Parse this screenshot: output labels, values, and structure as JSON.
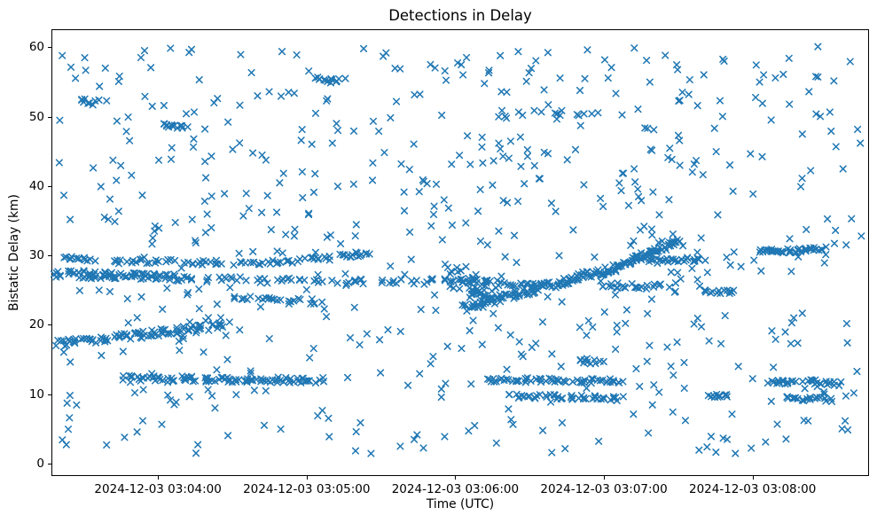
{
  "chart_data": {
    "type": "scatter",
    "title": "Detections in Delay",
    "xlabel": "Time (UTC)",
    "ylabel": "Bistatic Delay (km)",
    "marker": "x",
    "marker_color": "#1f77b4",
    "background_color": "#ffffff",
    "axes": {
      "time_origin": "2024-12-03 03:00:00",
      "x_min_s": 197,
      "x_max_s": 527,
      "y_min": -1.8,
      "y_max": 62.6,
      "x_tick_values_s": [
        240,
        300,
        360,
        420,
        480
      ],
      "x_tick_labels": [
        "2024-12-03 03:04:00",
        "2024-12-03 03:05:00",
        "2024-12-03 03:06:00",
        "2024-12-03 03:07:00",
        "2024-12-03 03:08:00"
      ],
      "y_tick_values": [
        0,
        10,
        20,
        30,
        40,
        50,
        60
      ],
      "y_tick_labels": [
        "0",
        "10",
        "20",
        "30",
        "40",
        "50",
        "60"
      ],
      "grid": false,
      "legend": false
    },
    "tracks": [
      {
        "t0": 199,
        "y0": 27.4,
        "t1": 250,
        "y1": 26.7,
        "n": 80,
        "jt": 2.0,
        "jy": 0.55
      },
      {
        "t0": 250,
        "y0": 26.6,
        "t1": 352,
        "y1": 26.2,
        "n": 55,
        "jt": 3.0,
        "jy": 0.4
      },
      {
        "t0": 355,
        "y0": 26.5,
        "t1": 393,
        "y1": 25.7,
        "n": 32,
        "jt": 2.0,
        "jy": 0.45
      },
      {
        "t0": 203,
        "y0": 29.6,
        "t1": 214,
        "y1": 29.4,
        "n": 12,
        "jt": 1.0,
        "jy": 0.3
      },
      {
        "t0": 221,
        "y0": 29.1,
        "t1": 246,
        "y1": 29.2,
        "n": 20,
        "jt": 1.5,
        "jy": 0.3
      },
      {
        "t0": 251,
        "y0": 28.9,
        "t1": 266,
        "y1": 29.0,
        "n": 14,
        "jt": 1.0,
        "jy": 0.3
      },
      {
        "t0": 272,
        "y0": 28.8,
        "t1": 297,
        "y1": 29.2,
        "n": 22,
        "jt": 1.5,
        "jy": 0.3
      },
      {
        "t0": 300,
        "y0": 29.4,
        "t1": 310,
        "y1": 29.6,
        "n": 10,
        "jt": 1.0,
        "jy": 0.3
      },
      {
        "t0": 314,
        "y0": 29.9,
        "t1": 325,
        "y1": 30.2,
        "n": 14,
        "jt": 1.0,
        "jy": 0.3
      },
      {
        "t0": 199,
        "y0": 17.2,
        "t1": 268,
        "y1": 20.0,
        "n": 95,
        "jt": 2.0,
        "jy": 0.5
      },
      {
        "t0": 227,
        "y0": 12.3,
        "t1": 306,
        "y1": 12.0,
        "n": 95,
        "jt": 2.0,
        "jy": 0.4
      },
      {
        "t0": 270,
        "y0": 23.7,
        "t1": 304,
        "y1": 23.3,
        "n": 26,
        "jt": 2.0,
        "jy": 0.5
      },
      {
        "t0": 359,
        "y0": 27.2,
        "t1": 374,
        "y1": 24.6,
        "n": 40,
        "jt": 3.5,
        "jy": 1.6
      },
      {
        "t0": 364,
        "y0": 22.4,
        "t1": 424,
        "y1": 28.2,
        "n": 125,
        "jt": 1.5,
        "jy": 0.5
      },
      {
        "t0": 424,
        "y0": 28.3,
        "t1": 450,
        "y1": 32.0,
        "n": 60,
        "jt": 1.5,
        "jy": 0.4
      },
      {
        "t0": 437,
        "y0": 29.2,
        "t1": 460,
        "y1": 29.4,
        "n": 30,
        "jt": 1.5,
        "jy": 0.35
      },
      {
        "t0": 483,
        "y0": 30.5,
        "t1": 509,
        "y1": 30.9,
        "n": 38,
        "jt": 1.5,
        "jy": 0.35
      },
      {
        "t0": 420,
        "y0": 25.7,
        "t1": 445,
        "y1": 25.5,
        "n": 24,
        "jt": 1.5,
        "jy": 0.4
      },
      {
        "t0": 460,
        "y0": 24.9,
        "t1": 473,
        "y1": 24.7,
        "n": 14,
        "jt": 1.0,
        "jy": 0.35
      },
      {
        "t0": 374,
        "y0": 12.1,
        "t1": 427,
        "y1": 11.9,
        "n": 60,
        "jt": 1.5,
        "jy": 0.35
      },
      {
        "t0": 382,
        "y0": 9.7,
        "t1": 427,
        "y1": 9.4,
        "n": 45,
        "jt": 1.5,
        "jy": 0.35
      },
      {
        "t0": 487,
        "y0": 11.8,
        "t1": 496,
        "y1": 11.7,
        "n": 14,
        "jt": 1.0,
        "jy": 0.3
      },
      {
        "t0": 501,
        "y0": 11.9,
        "t1": 515,
        "y1": 11.5,
        "n": 18,
        "jt": 1.0,
        "jy": 0.3
      },
      {
        "t0": 463,
        "y0": 9.8,
        "t1": 470,
        "y1": 9.7,
        "n": 10,
        "jt": 1.0,
        "jy": 0.3
      },
      {
        "t0": 493,
        "y0": 9.4,
        "t1": 512,
        "y1": 9.2,
        "n": 20,
        "jt": 1.0,
        "jy": 0.3
      },
      {
        "t0": 410,
        "y0": 14.8,
        "t1": 419,
        "y1": 14.6,
        "n": 10,
        "jt": 1.0,
        "jy": 0.3
      },
      {
        "t0": 242,
        "y0": 48.8,
        "t1": 251,
        "y1": 48.6,
        "n": 14,
        "jt": 1.0,
        "jy": 0.3
      },
      {
        "t0": 303,
        "y0": 55.4,
        "t1": 313,
        "y1": 55.2,
        "n": 12,
        "jt": 1.0,
        "jy": 0.3
      },
      {
        "t0": 378,
        "y0": 50.4,
        "t1": 424,
        "y1": 50.6,
        "n": 14,
        "jt": 4.0,
        "jy": 0.5
      },
      {
        "t0": 208,
        "y0": 52.2,
        "t1": 218,
        "y1": 52.0,
        "n": 10,
        "jt": 1.5,
        "jy": 0.4
      }
    ],
    "random_scatter": {
      "n": 620,
      "t_range_s": [
        200,
        524
      ],
      "y_range": [
        1.3,
        60.2
      ],
      "seed": 7
    }
  }
}
